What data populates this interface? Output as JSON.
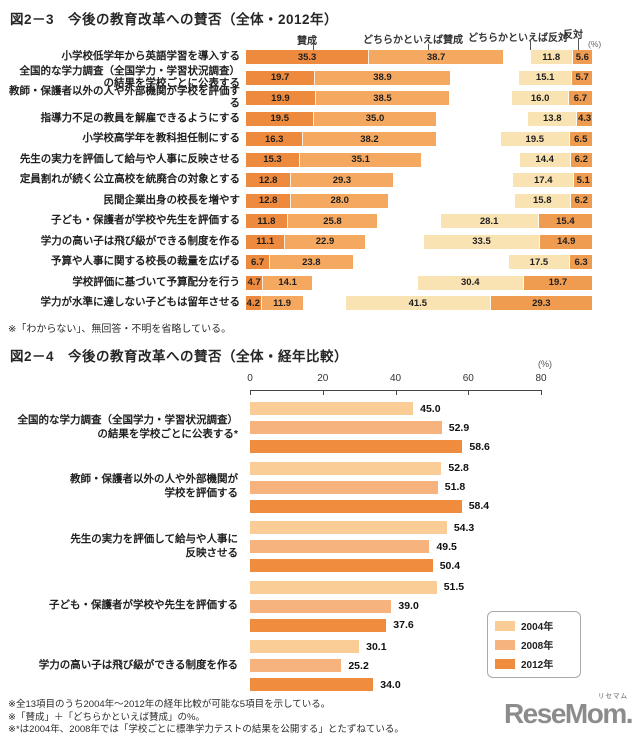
{
  "page": {
    "background": "#ffffff"
  },
  "chart1": {
    "title": "図2－3　今後の教育改革への賛否（全体・2012年）",
    "unit": "(%)",
    "headers": [
      "賛成",
      "どちらかといえば賛成",
      "どちらかといえば反対",
      "反対"
    ],
    "colors": {
      "agree": "#ed8a3e",
      "somewhat_agree": "#f5a85f",
      "somewhat_disagree": "#fae3b2",
      "disagree": "#f09c50"
    },
    "footnote": "※「わからない」、無回答・不明を省略している。",
    "rows": [
      {
        "label": "小学校低学年から英語学習を導入する",
        "values": [
          "35.3",
          "38.7",
          "11.8",
          "5.6"
        ]
      },
      {
        "label": "全国的な学力調査（全国学力・学習状況調査）\nの結果を学校ごとに公表する",
        "values": [
          "19.7",
          "38.9",
          "15.1",
          "5.7"
        ]
      },
      {
        "label": "教師・保護者以外の人や外部機関が学校を評価する",
        "values": [
          "19.9",
          "38.5",
          "16.0",
          "6.7"
        ]
      },
      {
        "label": "指導力不足の教員を解雇できるようにする",
        "values": [
          "19.5",
          "35.0",
          "13.8",
          "4.3"
        ]
      },
      {
        "label": "小学校高学年を教科担任制にする",
        "values": [
          "16.3",
          "38.2",
          "19.5",
          "6.5"
        ]
      },
      {
        "label": "先生の実力を評価して給与や人事に反映させる",
        "values": [
          "15.3",
          "35.1",
          "14.4",
          "6.2"
        ]
      },
      {
        "label": "定員割れが続く公立高校を統廃合の対象とする",
        "values": [
          "12.8",
          "29.3",
          "17.4",
          "5.1"
        ]
      },
      {
        "label": "民間企業出身の校長を増やす",
        "values": [
          "12.8",
          "28.0",
          "15.8",
          "6.2"
        ]
      },
      {
        "label": "子ども・保護者が学校や先生を評価する",
        "values": [
          "11.8",
          "25.8",
          "28.1",
          "15.4"
        ]
      },
      {
        "label": "学力の高い子は飛び級ができる制度を作る",
        "values": [
          "11.1",
          "22.9",
          "33.5",
          "14.9"
        ]
      },
      {
        "label": "予算や人事に関する校長の裁量を広げる",
        "values": [
          "6.7",
          "23.8",
          "17.5",
          "6.3"
        ]
      },
      {
        "label": "学校評価に基づいて予算配分を行う",
        "values": [
          "4.7",
          "14.1",
          "30.4",
          "19.7"
        ]
      },
      {
        "label": "学力が水準に達しない子どもは留年させる",
        "values": [
          "4.2",
          "11.9",
          "41.5",
          "29.3"
        ]
      }
    ]
  },
  "chart2": {
    "title": "図2－4　今後の教育改革への賛否（全体・経年比較）",
    "unit": "(%)",
    "axis_ticks": [
      "0",
      "20",
      "40",
      "60",
      "80"
    ],
    "legend": [
      {
        "label": "2004年",
        "color": "#facd96"
      },
      {
        "label": "2008年",
        "color": "#f6b37d"
      },
      {
        "label": "2012年",
        "color": "#f08c3e"
      }
    ],
    "groups": [
      {
        "label": "全国的な学力調査（全国学力・学習状況調査）\nの結果を学校ごとに公表する*",
        "values": [
          "45.0",
          "52.9",
          "58.6"
        ]
      },
      {
        "label": "教師・保護者以外の人や外部機関が\n学校を評価する",
        "values": [
          "52.8",
          "51.8",
          "58.4"
        ]
      },
      {
        "label": "先生の実力を評価して給与や人事に\n反映させる",
        "values": [
          "54.3",
          "49.5",
          "50.4"
        ]
      },
      {
        "label": "子ども・保護者が学校や先生を評価する",
        "values": [
          "51.5",
          "39.0",
          "37.6"
        ]
      },
      {
        "label": "学力の高い子は飛び級ができる制度を作る",
        "values": [
          "30.1",
          "25.2",
          "34.0"
        ]
      }
    ]
  },
  "footer": {
    "notes": [
      "※全13項目のうち2004年～2012年の経年比較が可能な5項目を示している。",
      "※「賛成」＋「どちらかといえば賛成」の%。",
      "※*は2004年、2008年では「学校ごとに標準学力テストの結果を公開する」とたずねている。"
    ],
    "logo": {
      "text": "ReseMom.",
      "ruby": "リセマム",
      "color": "#8c8c8c"
    }
  },
  "chart_data": [
    {
      "type": "bar",
      "subtype": "horizontal-stacked",
      "title": "図2－3　今後の教育改革への賛否（全体・2012年）",
      "unit": "%",
      "xlim": [
        0,
        100
      ],
      "grid": false,
      "note": "「わからない」、無回答・不明を省略している。",
      "categories": [
        "小学校低学年から英語学習を導入する",
        "全国的な学力調査（全国学力・学習状況調査）の結果を学校ごとに公表する",
        "教師・保護者以外の人や外部機関が学校を評価する",
        "指導力不足の教員を解雇できるようにする",
        "小学校高学年を教科担任制にする",
        "先生の実力を評価して給与や人事に反映させる",
        "定員割れが続く公立高校を統廃合の対象とする",
        "民間企業出身の校長を増やす",
        "子ども・保護者が学校や先生を評価する",
        "学力の高い子は飛び級ができる制度を作る",
        "予算や人事に関する校長の裁量を広げる",
        "学校評価に基づいて予算配分を行う",
        "学力が水準に達しない子どもは留年させる"
      ],
      "series": [
        {
          "name": "賛成",
          "values": [
            35.3,
            19.7,
            19.9,
            19.5,
            16.3,
            15.3,
            12.8,
            12.8,
            11.8,
            11.1,
            6.7,
            4.7,
            4.2
          ]
        },
        {
          "name": "どちらかといえば賛成",
          "values": [
            38.7,
            38.9,
            38.5,
            35.0,
            38.2,
            35.1,
            29.3,
            28.0,
            25.8,
            22.9,
            23.8,
            14.1,
            11.9
          ]
        },
        {
          "name": "どちらかといえば反対",
          "values": [
            11.8,
            15.1,
            16.0,
            13.8,
            19.5,
            14.4,
            17.4,
            15.8,
            28.1,
            33.5,
            17.5,
            30.4,
            41.5
          ]
        },
        {
          "name": "反対",
          "values": [
            5.6,
            5.7,
            6.7,
            4.3,
            6.5,
            6.2,
            5.1,
            6.2,
            15.4,
            14.9,
            6.3,
            19.7,
            29.3
          ]
        }
      ]
    },
    {
      "type": "bar",
      "subtype": "horizontal-grouped",
      "title": "図2－4　今後の教育改革への賛否（全体・経年比較）",
      "unit": "%",
      "xlim": [
        0,
        80
      ],
      "x_ticks": [
        0,
        20,
        40,
        60,
        80
      ],
      "grid": false,
      "legend_position": "bottom-right",
      "categories": [
        "全国的な学力調査（全国学力・学習状況調査）の結果を学校ごとに公表する*",
        "教師・保護者以外の人や外部機関が学校を評価する",
        "先生の実力を評価して給与や人事に反映させる",
        "子ども・保護者が学校や先生を評価する",
        "学力の高い子は飛び級ができる制度を作る"
      ],
      "series": [
        {
          "name": "2004年",
          "values": [
            45.0,
            52.8,
            54.3,
            51.5,
            30.1
          ]
        },
        {
          "name": "2008年",
          "values": [
            52.9,
            51.8,
            49.5,
            39.0,
            25.2
          ]
        },
        {
          "name": "2012年",
          "values": [
            58.6,
            58.4,
            50.4,
            37.6,
            34.0
          ]
        }
      ]
    }
  ]
}
